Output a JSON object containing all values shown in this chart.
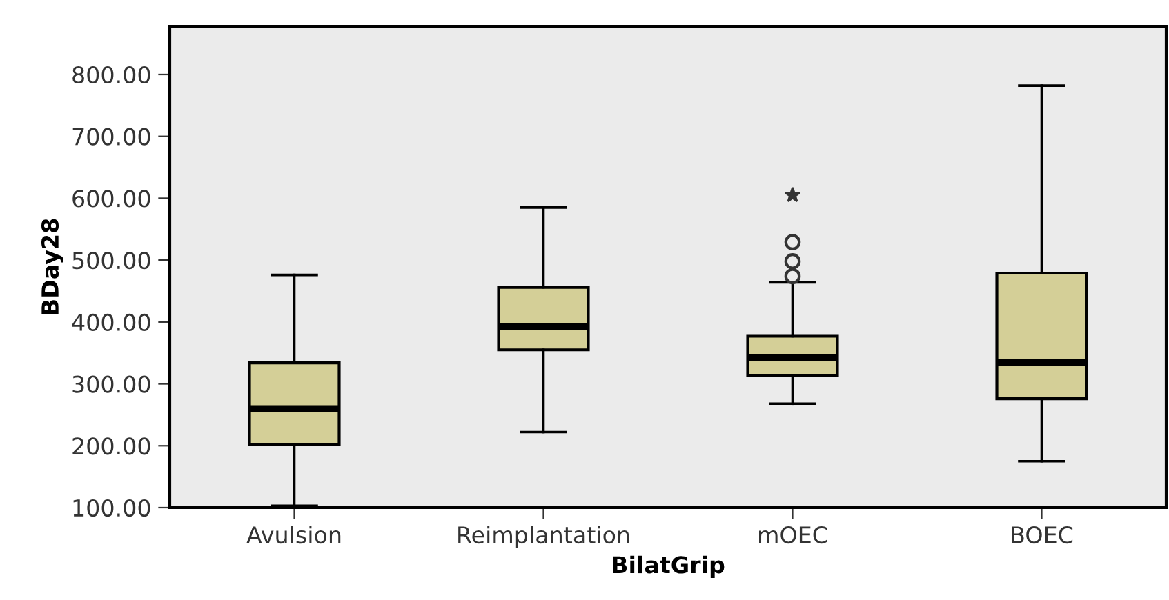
{
  "chart_data": {
    "type": "box",
    "xlabel": "BilatGrip",
    "ylabel": "BDay28",
    "categories": [
      "Avulsion",
      "Reimplantation",
      "mOEC",
      "BOEC"
    ],
    "boxes": [
      {
        "low": 103,
        "q1": 202,
        "median": 260,
        "q3": 334,
        "high": 476
      },
      {
        "low": 222,
        "q1": 355,
        "median": 393,
        "q3": 456,
        "high": 585
      },
      {
        "low": 268,
        "q1": 314,
        "median": 342,
        "q3": 377,
        "high": 464,
        "outliers": [
          474,
          498,
          529,
          605
        ]
      },
      {
        "low": 175,
        "q1": 276,
        "median": 335,
        "q3": 479,
        "high": 782
      }
    ],
    "color": "#d4cf97",
    "ylim": [
      100,
      878
    ],
    "yticks": [
      {
        "value": 100,
        "label": "100.00"
      },
      {
        "value": 200,
        "label": "200.00"
      },
      {
        "value": 300,
        "label": "300.00"
      },
      {
        "value": 400,
        "label": "400.00"
      },
      {
        "value": 500,
        "label": "500.00"
      },
      {
        "value": 600,
        "label": "600.00"
      },
      {
        "value": 700,
        "label": "700.00"
      },
      {
        "value": 800,
        "label": "800.00"
      }
    ],
    "grid": false
  }
}
